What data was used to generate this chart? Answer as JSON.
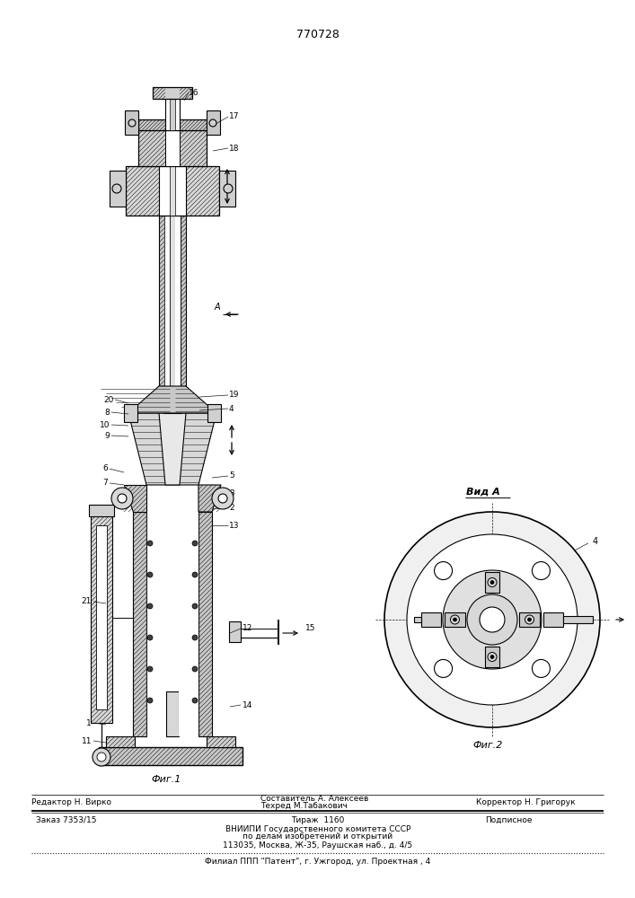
{
  "patent_number": "770728",
  "fig1_caption": "Фиг.1",
  "fig2_caption": "Фиг.2",
  "view_label": "Вид А",
  "editor_line": "Редактор Н. Вирко",
  "composer_line1": "Составитель А. Алексеев",
  "composer_line2": "Техред М.Табакович",
  "corrector_line": "Корректор Н. Григорук",
  "order_line": "Заказ 7353/15",
  "print_run_line": "Тираж  1160",
  "subscription_line": "Подписное",
  "org_line1": "ВНИИПИ Государственного комитета СССР",
  "org_line2": "по делам изобретений и открытий",
  "org_line3": "113035, Москва, Ж-35, Раушская наб., д. 4/5",
  "branch_line": "Филиал ППП \"Патент\", г. Ужгород, ул. Проектная , 4",
  "bg_color": "#ffffff",
  "line_color": "#1a1a1a"
}
